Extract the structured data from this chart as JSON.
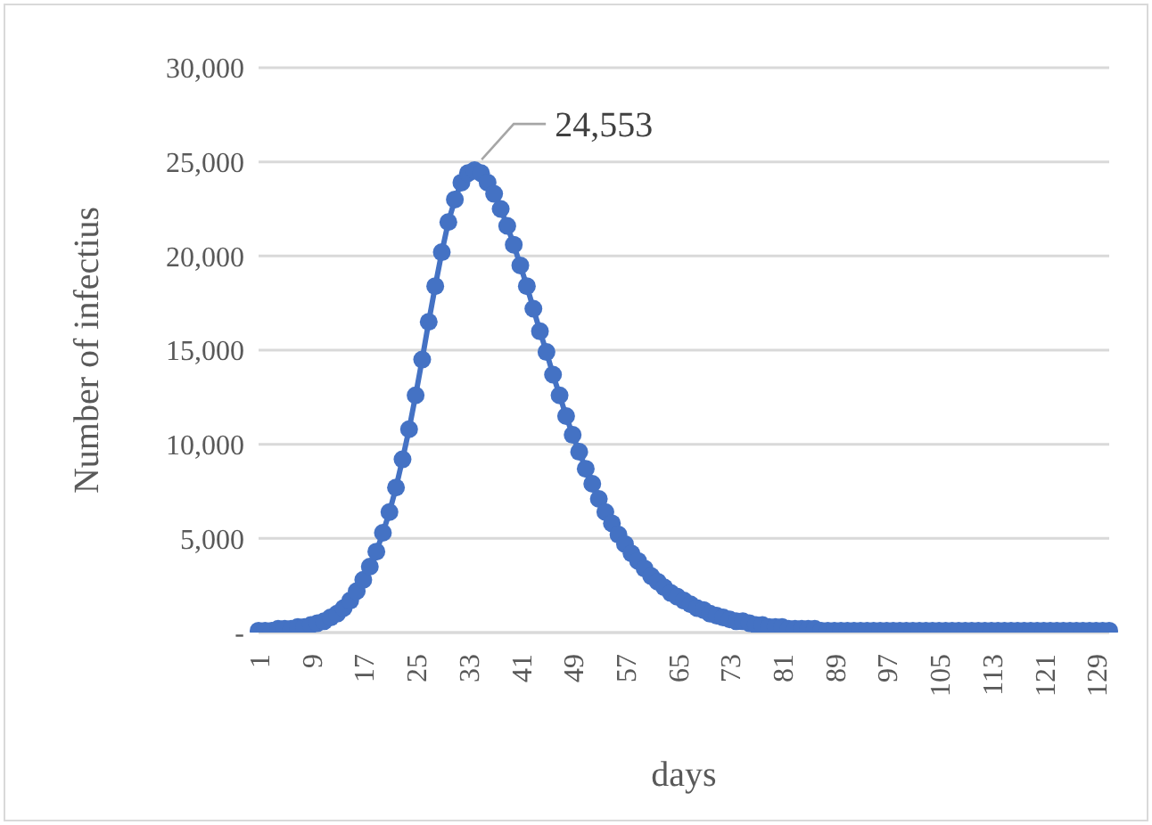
{
  "chart_data": {
    "type": "line",
    "xlabel": "days",
    "ylabel": "Number of infectius",
    "categories": [
      "1",
      null,
      null,
      null,
      null,
      null,
      null,
      null,
      "9",
      null,
      null,
      null,
      null,
      null,
      null,
      null,
      "17",
      null,
      null,
      null,
      null,
      null,
      null,
      null,
      "25",
      null,
      null,
      null,
      null,
      null,
      null,
      null,
      "33",
      null,
      null,
      null,
      null,
      null,
      null,
      null,
      "41",
      null,
      null,
      null,
      null,
      null,
      null,
      null,
      "49",
      null,
      null,
      null,
      null,
      null,
      null,
      null,
      "57",
      null,
      null,
      null,
      null,
      null,
      null,
      null,
      "65",
      null,
      null,
      null,
      null,
      null,
      null,
      null,
      "73",
      null,
      null,
      null,
      null,
      null,
      null,
      null,
      "81",
      null,
      null,
      null,
      null,
      null,
      null,
      null,
      "89",
      null,
      null,
      null,
      null,
      null,
      null,
      null,
      "97",
      null,
      null,
      null,
      null,
      null,
      null,
      null,
      "105",
      null,
      null,
      null,
      null,
      null,
      null,
      null,
      "113",
      null,
      null,
      null,
      null,
      null,
      null,
      null,
      "121",
      null,
      null,
      null,
      null,
      null,
      null,
      null,
      "129",
      null,
      null
    ],
    "series": [
      {
        "color": "#4472c4",
        "values": [
          100,
          100,
          100,
          200,
          200,
          200,
          300,
          300,
          400,
          500,
          600,
          800,
          1000,
          1300,
          1700,
          2200,
          2800,
          3500,
          4300,
          5300,
          6400,
          7700,
          9200,
          10800,
          12600,
          14500,
          16500,
          18400,
          20200,
          21800,
          23000,
          23900,
          24400,
          24553,
          24400,
          23900,
          23300,
          22500,
          21600,
          20600,
          19500,
          18400,
          17200,
          16000,
          14900,
          13700,
          12600,
          11500,
          10500,
          9600,
          8700,
          7900,
          7100,
          6400,
          5800,
          5200,
          4700,
          4200,
          3800,
          3400,
          3000,
          2700,
          2400,
          2100,
          1900,
          1700,
          1500,
          1300,
          1200,
          1000,
          900,
          800,
          700,
          600,
          600,
          500,
          400,
          400,
          300,
          300,
          300,
          200,
          200,
          200,
          200,
          200,
          100,
          100,
          100,
          100,
          100,
          100,
          100,
          100,
          100,
          100,
          100,
          100,
          100,
          100,
          100,
          100,
          100,
          100,
          100,
          100,
          100,
          100,
          100,
          100,
          100,
          100,
          100,
          100,
          100,
          100,
          100,
          100,
          100,
          100,
          100,
          100,
          100,
          100,
          100,
          100,
          100,
          100,
          100,
          100,
          100
        ]
      }
    ],
    "ylim": [
      0,
      30000
    ],
    "yticks": [
      {
        "value": 0,
        "label": "-"
      },
      {
        "value": 5000,
        "label": "5,000"
      },
      {
        "value": 10000,
        "label": "10,000"
      },
      {
        "value": 15000,
        "label": "15,000"
      },
      {
        "value": 20000,
        "label": "20,000"
      },
      {
        "value": 25000,
        "label": "25,000"
      },
      {
        "value": 30000,
        "label": "30,000"
      }
    ],
    "annotations": [
      "24,553"
    ],
    "grid": "y",
    "marker": "circle",
    "line_style": "solid"
  }
}
